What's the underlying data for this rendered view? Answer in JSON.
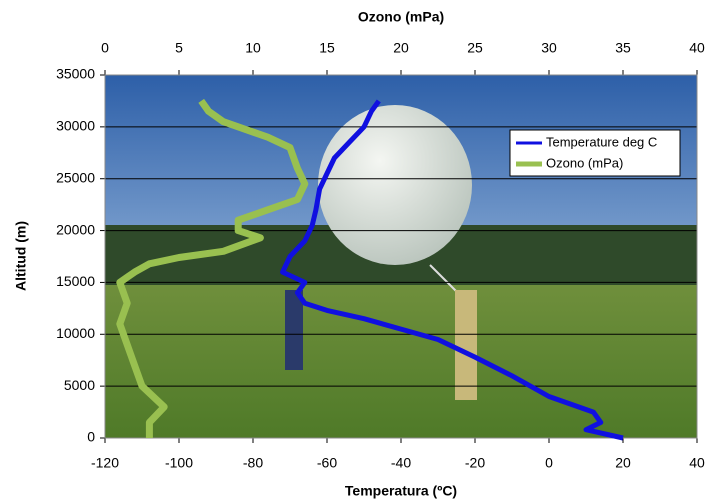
{
  "chart_data": {
    "type": "line",
    "x_label": "Temperatura (ºC)",
    "x2_label": "Ozono (mPa)",
    "y_label": "Altitud (m)",
    "xlim": [
      -120,
      40
    ],
    "xticks": [
      -120,
      -100,
      -80,
      -60,
      -40,
      -20,
      0,
      20,
      40
    ],
    "x2lim": [
      0,
      40
    ],
    "x2ticks": [
      0,
      5,
      10,
      15,
      20,
      25,
      30,
      35,
      40
    ],
    "ylim": [
      0,
      35000
    ],
    "yticks": [
      0,
      5000,
      10000,
      15000,
      20000,
      25000,
      30000,
      35000
    ],
    "grid": true,
    "legend": "upper-right",
    "series": [
      {
        "name": "Temperature deg C",
        "color": "#1010e0",
        "axis": "x",
        "x": [
          20,
          10,
          14,
          12,
          0,
          -10,
          -20,
          -30,
          -40,
          -50,
          -60,
          -66,
          -68,
          -66,
          -72,
          -70,
          -66,
          -64,
          -63,
          -62,
          -60,
          -58,
          -54,
          -50,
          -48,
          -46
        ],
        "values": [
          0,
          800,
          1500,
          2500,
          4000,
          6000,
          7800,
          9500,
          10500,
          11500,
          12300,
          13000,
          14000,
          15000,
          16000,
          17500,
          19000,
          20500,
          22000,
          24000,
          25500,
          27000,
          28500,
          30000,
          31500,
          32500
        ]
      },
      {
        "name": "Ozono (mPa)",
        "color": "#99c050",
        "axis": "x2",
        "x": [
          3,
          3,
          4,
          2.5,
          2,
          1.5,
          1,
          1.5,
          1,
          2,
          3,
          5,
          8,
          10.5,
          9,
          9,
          11,
          13,
          13.5,
          13,
          12.5,
          11,
          8,
          7,
          6.5
        ],
        "values": [
          0,
          1500,
          3000,
          5000,
          7000,
          9000,
          11000,
          13000,
          15000,
          16000,
          16800,
          17400,
          18000,
          19300,
          20000,
          21000,
          22000,
          23000,
          24500,
          26000,
          28000,
          29000,
          30500,
          31500,
          32500
        ]
      }
    ]
  }
}
